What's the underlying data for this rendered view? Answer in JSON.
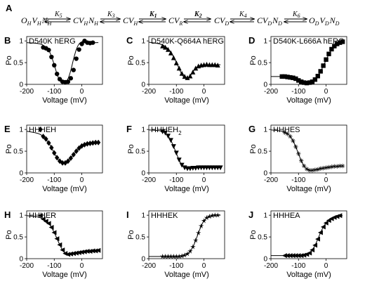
{
  "scheme": {
    "label": "A",
    "states": [
      {
        "m": "O",
        "ms": "H",
        "n": "V",
        "ns": "H",
        "o": "N",
        "os": "H"
      },
      {
        "m": "CV",
        "ms": "H",
        "n": "N",
        "ns": "H",
        "o": "",
        "os": ""
      },
      {
        "m": "CV",
        "ms": "H",
        "n": "",
        "ns": "",
        "o": "",
        "os": ""
      },
      {
        "m": "CV",
        "ms": "R",
        "n": "",
        "ns": "",
        "o": "",
        "os": ""
      },
      {
        "m": "CV",
        "ms": "D",
        "n": "",
        "ns": "",
        "o": "",
        "os": ""
      },
      {
        "m": "CV",
        "ms": "D",
        "n": "N",
        "ns": "D",
        "o": "",
        "os": ""
      },
      {
        "m": "O",
        "ms": "D",
        "n": "V",
        "ns": "D",
        "o": "N",
        "os": "D"
      }
    ],
    "rates": [
      {
        "k": "K",
        "s": "5",
        "bold": false
      },
      {
        "k": "K",
        "s": "3",
        "bold": false
      },
      {
        "k": "K",
        "s": "1",
        "bold": true
      },
      {
        "k": "K",
        "s": "2",
        "bold": true
      },
      {
        "k": "K",
        "s": "4",
        "bold": false
      },
      {
        "k": "K",
        "s": "6",
        "bold": false
      }
    ]
  },
  "chart_data": [
    {
      "panel": "B",
      "title": "D540K hERG",
      "type": "line",
      "marker": "circle",
      "xlabel": "Voltage (mV)",
      "ylabel": "Po",
      "xlim": [
        -200,
        75
      ],
      "ylim": [
        0,
        1.1
      ],
      "xticks": [
        "-200",
        "-100",
        "0"
      ],
      "yticks": [
        "0",
        "0.5",
        "1"
      ],
      "fit": {
        "x": [
          -200,
          -160,
          -140,
          -120,
          -110,
          -100,
          -90,
          -80,
          -70,
          -60,
          -50,
          -40,
          -30,
          -20,
          -10,
          0,
          10,
          20,
          40,
          60
        ],
        "y": [
          0.96,
          0.94,
          0.9,
          0.78,
          0.64,
          0.45,
          0.24,
          0.09,
          0.04,
          0.05,
          0.13,
          0.32,
          0.58,
          0.8,
          0.93,
          0.98,
          0.99,
          0.97,
          0.96,
          0.96
        ]
      },
      "points": {
        "x": [
          -140,
          -130,
          -120,
          -110,
          -100,
          -90,
          -80,
          -70,
          -60,
          -50,
          -40,
          -30,
          -20,
          -10,
          0,
          10,
          20,
          30,
          40
        ],
        "y": [
          0.85,
          0.83,
          0.79,
          0.63,
          0.44,
          0.24,
          0.12,
          0.06,
          0.05,
          0.06,
          0.14,
          0.33,
          0.59,
          0.8,
          0.93,
          1.0,
          0.96,
          0.95,
          0.96
        ]
      }
    },
    {
      "panel": "C",
      "title": "D540K-Q664A hERG",
      "type": "line",
      "marker": "triangle-up",
      "xlabel": "Voltage (mV)",
      "ylabel": "Po",
      "xlim": [
        -200,
        75
      ],
      "ylim": [
        0,
        1.1
      ],
      "xticks": [
        "-200",
        "-100",
        "0"
      ],
      "yticks": [
        "0",
        "0.5",
        "1"
      ],
      "fit": {
        "x": [
          -200,
          -160,
          -140,
          -120,
          -100,
          -90,
          -80,
          -70,
          -60,
          -50,
          -40,
          -30,
          -20,
          -10,
          0,
          20,
          40,
          60
        ],
        "y": [
          0.97,
          0.93,
          0.87,
          0.74,
          0.5,
          0.36,
          0.23,
          0.15,
          0.14,
          0.19,
          0.29,
          0.37,
          0.42,
          0.44,
          0.45,
          0.45,
          0.45,
          0.45
        ]
      },
      "points": {
        "x": [
          -150,
          -140,
          -130,
          -120,
          -110,
          -100,
          -90,
          -80,
          -70,
          -60,
          -50,
          -40,
          -30,
          -20,
          -10,
          0,
          10,
          20,
          30,
          40,
          50
        ],
        "y": [
          0.88,
          0.85,
          0.8,
          0.72,
          0.61,
          0.49,
          0.37,
          0.25,
          0.18,
          0.15,
          0.19,
          0.28,
          0.37,
          0.42,
          0.44,
          0.45,
          0.46,
          0.45,
          0.45,
          0.45,
          0.44
        ]
      }
    },
    {
      "panel": "D",
      "title": "D540K-L666A hERG",
      "type": "line",
      "marker": "square",
      "xlabel": "Voltage (mV)",
      "ylabel": "Po",
      "xlim": [
        -200,
        75
      ],
      "ylim": [
        0,
        1.1
      ],
      "xticks": [
        "-200",
        "-100",
        "0"
      ],
      "yticks": [
        "0",
        "0.5",
        "1"
      ],
      "fit": {
        "x": [
          -200,
          -160,
          -140,
          -120,
          -100,
          -90,
          -80,
          -70,
          -60,
          -50,
          -40,
          -30,
          -20,
          -10,
          0,
          10,
          20,
          30,
          40,
          50,
          60
        ],
        "y": [
          0.18,
          0.18,
          0.17,
          0.15,
          0.1,
          0.06,
          0.03,
          0.02,
          0.03,
          0.06,
          0.11,
          0.19,
          0.3,
          0.42,
          0.56,
          0.69,
          0.8,
          0.88,
          0.93,
          0.96,
          0.97
        ]
      },
      "points": {
        "x": [
          -160,
          -150,
          -140,
          -130,
          -120,
          -110,
          -100,
          -90,
          -80,
          -70,
          -60,
          -50,
          -40,
          -30,
          -20,
          -10,
          0,
          10,
          20,
          30,
          40,
          50,
          60
        ],
        "y": [
          0.18,
          0.18,
          0.17,
          0.16,
          0.15,
          0.13,
          0.09,
          0.06,
          0.04,
          0.03,
          0.04,
          0.06,
          0.11,
          0.19,
          0.3,
          0.43,
          0.57,
          0.7,
          0.81,
          0.88,
          0.93,
          0.96,
          0.98
        ]
      }
    },
    {
      "panel": "E",
      "title": "HHHEH",
      "title_sub": "",
      "type": "line",
      "marker": "diamond",
      "xlabel": "Voltage (mV)",
      "ylabel": "Po",
      "xlim": [
        -200,
        75
      ],
      "ylim": [
        0,
        1.1
      ],
      "xticks": [
        "-200",
        "-100",
        "0"
      ],
      "yticks": [
        "0",
        "0.5",
        "1"
      ],
      "fit": {
        "x": [
          -200,
          -160,
          -140,
          -120,
          -110,
          -100,
          -90,
          -80,
          -70,
          -60,
          -50,
          -40,
          -30,
          -20,
          -10,
          0,
          20,
          40,
          60
        ],
        "y": [
          0.96,
          0.91,
          0.84,
          0.69,
          0.58,
          0.46,
          0.35,
          0.27,
          0.23,
          0.23,
          0.27,
          0.34,
          0.42,
          0.5,
          0.57,
          0.62,
          0.67,
          0.69,
          0.7
        ]
      },
      "points": {
        "x": [
          -150,
          -140,
          -130,
          -120,
          -110,
          -100,
          -90,
          -80,
          -70,
          -60,
          -50,
          -40,
          -30,
          -20,
          -10,
          0,
          10,
          20,
          30,
          40,
          50,
          60
        ],
        "y": [
          1.0,
          0.84,
          0.78,
          0.69,
          0.58,
          0.46,
          0.35,
          0.27,
          0.23,
          0.23,
          0.27,
          0.34,
          0.42,
          0.5,
          0.57,
          0.62,
          0.65,
          0.67,
          0.68,
          0.69,
          0.7,
          0.7
        ]
      }
    },
    {
      "panel": "F",
      "title": "HHHEH",
      "title_sub": "2",
      "type": "line",
      "marker": "triangle-down",
      "xlabel": "Voltage (mV)",
      "ylabel": "Po",
      "xlim": [
        -200,
        75
      ],
      "ylim": [
        0,
        1.1
      ],
      "xticks": [
        "-200",
        "-100",
        "0"
      ],
      "yticks": [
        "0",
        "0.5",
        "1"
      ],
      "fit": {
        "x": [
          -200,
          -160,
          -140,
          -130,
          -120,
          -110,
          -100,
          -90,
          -80,
          -70,
          -60,
          -50,
          -40,
          -20,
          0,
          20,
          40,
          60
        ],
        "y": [
          0.99,
          0.97,
          0.92,
          0.85,
          0.75,
          0.61,
          0.45,
          0.3,
          0.18,
          0.12,
          0.1,
          0.1,
          0.11,
          0.12,
          0.12,
          0.12,
          0.12,
          0.12
        ]
      },
      "points": {
        "x": [
          -150,
          -140,
          -130,
          -120,
          -110,
          -100,
          -90,
          -80,
          -70,
          -60,
          -50,
          -40,
          -30,
          -20,
          -10,
          0,
          10,
          20,
          30,
          40,
          50,
          60
        ],
        "y": [
          0.95,
          0.92,
          0.85,
          0.75,
          0.61,
          0.46,
          0.3,
          0.18,
          0.12,
          0.1,
          0.1,
          0.11,
          0.11,
          0.12,
          0.12,
          0.12,
          0.12,
          0.12,
          0.12,
          0.12,
          0.12,
          0.12
        ]
      }
    },
    {
      "panel": "G",
      "title": "HHHES",
      "type": "line",
      "marker": "asterisk",
      "xlabel": "Voltage (mV)",
      "ylabel": "Po",
      "xlim": [
        -200,
        75
      ],
      "ylim": [
        0,
        1.1
      ],
      "xticks": [
        "-200",
        "-100",
        "0"
      ],
      "yticks": [
        "0",
        "0.5",
        "1"
      ],
      "fit": {
        "x": [
          -200,
          -160,
          -140,
          -130,
          -120,
          -110,
          -100,
          -90,
          -80,
          -70,
          -60,
          -50,
          -40,
          -20,
          0,
          20,
          40,
          60
        ],
        "y": [
          0.99,
          0.96,
          0.9,
          0.84,
          0.74,
          0.6,
          0.44,
          0.28,
          0.16,
          0.09,
          0.06,
          0.06,
          0.07,
          0.1,
          0.12,
          0.14,
          0.15,
          0.16
        ]
      },
      "points": {
        "x": [
          -150,
          -140,
          -130,
          -120,
          -110,
          -100,
          -90,
          -80,
          -70,
          -60,
          -50,
          -40,
          -30,
          -20,
          -10,
          0,
          10,
          20,
          30,
          40,
          50,
          60
        ],
        "y": [
          0.93,
          0.9,
          0.84,
          0.74,
          0.6,
          0.44,
          0.28,
          0.16,
          0.09,
          0.06,
          0.06,
          0.07,
          0.08,
          0.1,
          0.11,
          0.12,
          0.13,
          0.14,
          0.15,
          0.15,
          0.16,
          0.16
        ]
      }
    },
    {
      "panel": "H",
      "title": "HHHER",
      "type": "line",
      "marker": "triangle-left",
      "xlabel": "Voltage (mV)",
      "ylabel": "Po",
      "xlim": [
        -200,
        75
      ],
      "ylim": [
        0,
        1.1
      ],
      "xticks": [
        "-200",
        "-100",
        "0"
      ],
      "yticks": [
        "0",
        "0.5",
        "1"
      ],
      "fit": {
        "x": [
          -200,
          -160,
          -140,
          -120,
          -110,
          -100,
          -90,
          -80,
          -70,
          -60,
          -50,
          -40,
          -20,
          0,
          20,
          40,
          60
        ],
        "y": [
          0.99,
          0.96,
          0.91,
          0.81,
          0.72,
          0.6,
          0.46,
          0.32,
          0.2,
          0.12,
          0.1,
          0.11,
          0.13,
          0.15,
          0.17,
          0.18,
          0.19
        ]
      },
      "points": {
        "x": [
          -150,
          -140,
          -130,
          -120,
          -110,
          -100,
          -90,
          -80,
          -70,
          -60,
          -50,
          -40,
          -30,
          -20,
          -10,
          0,
          10,
          20,
          30,
          40,
          50,
          60
        ],
        "y": [
          0.99,
          0.91,
          0.86,
          0.81,
          0.72,
          0.6,
          0.46,
          0.32,
          0.2,
          0.12,
          0.1,
          0.11,
          0.12,
          0.13,
          0.14,
          0.15,
          0.16,
          0.17,
          0.17,
          0.18,
          0.18,
          0.19
        ]
      }
    },
    {
      "panel": "I",
      "title": "HHHEK",
      "type": "line",
      "marker": "star",
      "xlabel": "Voltage (mV)",
      "ylabel": "Po",
      "xlim": [
        -200,
        75
      ],
      "ylim": [
        0,
        1.1
      ],
      "xticks": [
        "-200",
        "-100",
        "0"
      ],
      "yticks": [
        "0",
        "0.5",
        "1"
      ],
      "fit": {
        "x": [
          -200,
          -160,
          -120,
          -100,
          -80,
          -70,
          -60,
          -50,
          -40,
          -30,
          -20,
          -10,
          0,
          10,
          20,
          30,
          40,
          60
        ],
        "y": [
          0.05,
          0.05,
          0.05,
          0.05,
          0.06,
          0.08,
          0.11,
          0.17,
          0.27,
          0.42,
          0.59,
          0.75,
          0.87,
          0.94,
          0.97,
          0.99,
          1.0,
          1.0
        ]
      },
      "points": {
        "x": [
          -150,
          -140,
          -130,
          -120,
          -110,
          -100,
          -90,
          -80,
          -70,
          -60,
          -50,
          -40,
          -30,
          -20,
          -10,
          0,
          10,
          20,
          30,
          40,
          50
        ],
        "y": [
          0.05,
          0.05,
          0.05,
          0.05,
          0.05,
          0.05,
          0.05,
          0.06,
          0.08,
          0.11,
          0.17,
          0.27,
          0.42,
          0.59,
          0.75,
          0.87,
          0.94,
          0.97,
          0.99,
          1.0,
          1.0
        ]
      }
    },
    {
      "panel": "J",
      "title": "HHHEA",
      "type": "line",
      "marker": "triangle-left",
      "xlabel": "Voltage (mV)",
      "ylabel": "Po",
      "xlim": [
        -200,
        75
      ],
      "ylim": [
        0,
        1.1
      ],
      "xticks": [
        "-200",
        "-100",
        "0"
      ],
      "yticks": [
        "0",
        "0.5",
        "1"
      ],
      "fit": {
        "x": [
          -200,
          -160,
          -120,
          -100,
          -80,
          -70,
          -60,
          -50,
          -40,
          -30,
          -20,
          -10,
          0,
          10,
          20,
          30,
          40,
          50,
          60
        ],
        "y": [
          0.07,
          0.07,
          0.07,
          0.07,
          0.08,
          0.1,
          0.13,
          0.2,
          0.31,
          0.45,
          0.6,
          0.73,
          0.82,
          0.88,
          0.92,
          0.95,
          0.97,
          0.98,
          0.99
        ]
      },
      "points": {
        "x": [
          -150,
          -140,
          -130,
          -120,
          -110,
          -100,
          -90,
          -80,
          -70,
          -60,
          -50,
          -40,
          -30,
          -20,
          -10,
          0,
          10,
          20,
          30,
          40,
          50
        ],
        "y": [
          0.07,
          0.07,
          0.07,
          0.07,
          0.07,
          0.07,
          0.07,
          0.08,
          0.1,
          0.13,
          0.2,
          0.31,
          0.45,
          0.6,
          0.73,
          0.82,
          0.88,
          0.92,
          0.95,
          0.97,
          0.99
        ]
      }
    }
  ]
}
